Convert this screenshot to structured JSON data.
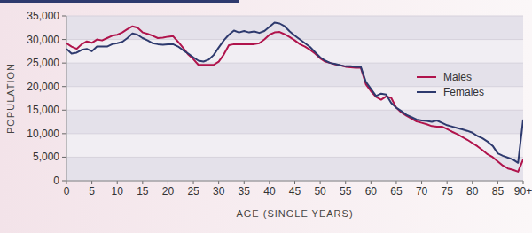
{
  "chart_data": {
    "type": "line",
    "x_label": "AGE (SINGLE YEARS)",
    "y_label": "POPULATION",
    "x": [
      0,
      1,
      2,
      3,
      4,
      5,
      6,
      7,
      8,
      9,
      10,
      11,
      12,
      13,
      14,
      15,
      16,
      17,
      18,
      19,
      20,
      21,
      22,
      23,
      24,
      25,
      26,
      27,
      28,
      29,
      30,
      31,
      32,
      33,
      34,
      35,
      36,
      37,
      38,
      39,
      40,
      41,
      42,
      43,
      44,
      45,
      46,
      47,
      48,
      49,
      50,
      51,
      52,
      53,
      54,
      55,
      56,
      57,
      58,
      59,
      60,
      61,
      62,
      63,
      64,
      65,
      66,
      67,
      68,
      69,
      70,
      71,
      72,
      73,
      74,
      75,
      76,
      77,
      78,
      79,
      80,
      81,
      82,
      83,
      84,
      85,
      86,
      87,
      88,
      89,
      90
    ],
    "series": [
      {
        "name": "Males",
        "color": "#b0144c",
        "values": [
          29200,
          28500,
          28000,
          29000,
          29600,
          29300,
          30000,
          29800,
          30300,
          30800,
          31000,
          31500,
          32200,
          32800,
          32500,
          31500,
          31200,
          30800,
          30300,
          30400,
          30600,
          30700,
          29500,
          28200,
          26800,
          25800,
          24600,
          24600,
          24600,
          24600,
          25300,
          26800,
          28800,
          29000,
          29000,
          29000,
          29000,
          29000,
          29200,
          30000,
          31000,
          31500,
          31600,
          31100,
          30500,
          29800,
          29000,
          28500,
          27800,
          27000,
          26000,
          25300,
          25000,
          24700,
          24500,
          24200,
          24100,
          24000,
          24000,
          20500,
          19000,
          17800,
          17200,
          17900,
          17600,
          15500,
          14500,
          13800,
          13200,
          12600,
          12300,
          12000,
          11600,
          11500,
          11500,
          11000,
          10400,
          9900,
          9300,
          8700,
          8000,
          7300,
          6500,
          5600,
          5000,
          4100,
          3200,
          2600,
          2300,
          1900,
          4500
        ]
      },
      {
        "name": "Females",
        "color": "#2e3a6e",
        "values": [
          28000,
          27000,
          27200,
          27800,
          28000,
          27500,
          28500,
          28500,
          28500,
          29000,
          29200,
          29500,
          30300,
          31300,
          31000,
          30300,
          29800,
          29200,
          29000,
          28900,
          29000,
          29000,
          28500,
          27700,
          27000,
          26200,
          25500,
          25300,
          25700,
          26700,
          28300,
          29800,
          31000,
          31900,
          31500,
          31800,
          31500,
          31700,
          31400,
          31800,
          32700,
          33600,
          33400,
          32800,
          31700,
          30800,
          30000,
          29200,
          28400,
          27300,
          26200,
          25500,
          25000,
          24800,
          24500,
          24300,
          24300,
          24200,
          24200,
          21000,
          19500,
          18000,
          18500,
          18300,
          16500,
          15500,
          14800,
          14000,
          13500,
          13000,
          12800,
          12700,
          12500,
          12800,
          12300,
          11800,
          11500,
          11200,
          10900,
          10600,
          10200,
          9500,
          9000,
          8300,
          7400,
          5800,
          5300,
          4900,
          4500,
          3800,
          13000
        ]
      }
    ],
    "xlim": [
      0,
      90
    ],
    "xticks": [
      0,
      5,
      10,
      15,
      20,
      25,
      30,
      35,
      40,
      45,
      50,
      55,
      60,
      65,
      70,
      75,
      80,
      85,
      {
        "value": 90,
        "label": "90+"
      }
    ],
    "ylim": [
      0,
      35000
    ],
    "yticks": [
      0,
      {
        "value": 5000,
        "label": "5,000"
      },
      {
        "value": 10000,
        "label": "10,000"
      },
      {
        "value": 15000,
        "label": "15,000"
      },
      {
        "value": 20000,
        "label": "20,000"
      },
      {
        "value": 25000,
        "label": "25,000"
      },
      {
        "value": 30000,
        "label": "30,000"
      },
      {
        "value": 35000,
        "label": "35,000"
      }
    ],
    "grid": true,
    "legend": "right"
  }
}
